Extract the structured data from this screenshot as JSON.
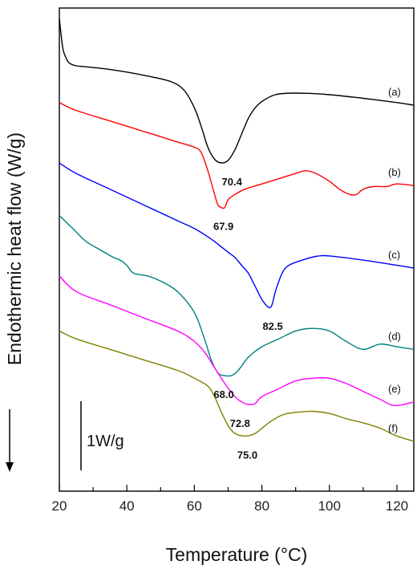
{
  "chart_data": {
    "type": "line",
    "title": "",
    "xlabel": "Temperature (°C)",
    "ylabel": "Endothermic heat flow (W/g)",
    "xlim": [
      20,
      125
    ],
    "xticks": [
      20,
      40,
      60,
      80,
      100,
      120
    ],
    "yticks_shown": false,
    "grid": false,
    "legend": "none",
    "scale_bar_label": "1W/g",
    "series": [
      {
        "id": "a",
        "label": "(a)",
        "color": "#000000",
        "peak_label": "70.4",
        "peak_x": 70.4,
        "points": [
          [
            20,
            -0.4
          ],
          [
            21,
            0.15
          ],
          [
            22,
            0.35
          ],
          [
            23,
            0.45
          ],
          [
            25,
            0.5
          ],
          [
            28,
            0.52
          ],
          [
            35,
            0.57
          ],
          [
            45,
            0.68
          ],
          [
            53,
            0.8
          ],
          [
            57,
            0.97
          ],
          [
            60,
            1.3
          ],
          [
            62,
            1.65
          ],
          [
            64,
            2.05
          ],
          [
            66,
            2.28
          ],
          [
            68,
            2.35
          ],
          [
            70,
            2.3
          ],
          [
            72,
            2.1
          ],
          [
            74,
            1.8
          ],
          [
            76,
            1.5
          ],
          [
            78,
            1.3
          ],
          [
            80,
            1.18
          ],
          [
            84,
            1.05
          ],
          [
            90,
            1.02
          ],
          [
            100,
            1.05
          ],
          [
            110,
            1.12
          ],
          [
            120,
            1.2
          ],
          [
            125,
            1.25
          ]
        ]
      },
      {
        "id": "b",
        "label": "(b)",
        "color": "#ff0000",
        "peak_label": "67.9",
        "peak_x": 67.9,
        "points": [
          [
            20,
            1.2
          ],
          [
            25,
            1.35
          ],
          [
            35,
            1.55
          ],
          [
            45,
            1.75
          ],
          [
            55,
            1.95
          ],
          [
            60,
            2.05
          ],
          [
            62,
            2.15
          ],
          [
            64,
            2.5
          ],
          [
            66,
            2.95
          ],
          [
            67,
            3.15
          ],
          [
            68,
            3.2
          ],
          [
            69,
            3.2
          ],
          [
            70,
            3.05
          ],
          [
            72,
            2.95
          ],
          [
            75,
            2.85
          ],
          [
            80,
            2.75
          ],
          [
            85,
            2.65
          ],
          [
            90,
            2.55
          ],
          [
            93,
            2.5
          ],
          [
            96,
            2.55
          ],
          [
            100,
            2.7
          ],
          [
            103,
            2.85
          ],
          [
            106,
            2.95
          ],
          [
            108,
            2.95
          ],
          [
            110,
            2.85
          ],
          [
            113,
            2.8
          ],
          [
            117,
            2.8
          ],
          [
            120,
            2.75
          ],
          [
            125,
            2.78
          ]
        ]
      },
      {
        "id": "c",
        "label": "(c)",
        "color": "#0000ff",
        "peak_label": "82.5",
        "peak_x": 82.5,
        "points": [
          [
            20,
            2.35
          ],
          [
            25,
            2.55
          ],
          [
            35,
            2.85
          ],
          [
            45,
            3.15
          ],
          [
            55,
            3.45
          ],
          [
            60,
            3.6
          ],
          [
            65,
            3.8
          ],
          [
            68,
            3.95
          ],
          [
            70,
            4.05
          ],
          [
            72,
            4.15
          ],
          [
            74,
            4.3
          ],
          [
            76,
            4.45
          ],
          [
            78,
            4.7
          ],
          [
            80,
            4.95
          ],
          [
            82,
            5.1
          ],
          [
            83,
            5.05
          ],
          [
            84,
            4.8
          ],
          [
            86,
            4.45
          ],
          [
            88,
            4.3
          ],
          [
            92,
            4.2
          ],
          [
            96,
            4.13
          ],
          [
            100,
            4.12
          ],
          [
            110,
            4.2
          ],
          [
            120,
            4.3
          ],
          [
            125,
            4.35
          ]
        ]
      },
      {
        "id": "d",
        "label": "(d)",
        "color": "#008080",
        "peak_label": "68.0",
        "peak_x": 68.0,
        "points": [
          [
            20,
            3.35
          ],
          [
            24,
            3.6
          ],
          [
            28,
            3.85
          ],
          [
            32,
            4.0
          ],
          [
            36,
            4.15
          ],
          [
            38,
            4.2
          ],
          [
            40,
            4.3
          ],
          [
            42,
            4.45
          ],
          [
            46,
            4.5
          ],
          [
            50,
            4.6
          ],
          [
            55,
            4.8
          ],
          [
            60,
            5.2
          ],
          [
            63,
            5.7
          ],
          [
            65,
            6.1
          ],
          [
            67,
            6.35
          ],
          [
            69,
            6.4
          ],
          [
            71,
            6.4
          ],
          [
            73,
            6.3
          ],
          [
            76,
            6.05
          ],
          [
            80,
            5.85
          ],
          [
            85,
            5.7
          ],
          [
            90,
            5.55
          ],
          [
            95,
            5.5
          ],
          [
            100,
            5.55
          ],
          [
            105,
            5.75
          ],
          [
            110,
            5.9
          ],
          [
            115,
            5.8
          ],
          [
            120,
            5.85
          ],
          [
            125,
            5.9
          ]
        ]
      },
      {
        "id": "e",
        "label": "(e)",
        "color": "#ff00ff",
        "peak_label": "72.8",
        "peak_x": 72.8,
        "points": [
          [
            20,
            4.5
          ],
          [
            25,
            4.8
          ],
          [
            35,
            5.05
          ],
          [
            45,
            5.3
          ],
          [
            55,
            5.55
          ],
          [
            60,
            5.75
          ],
          [
            63,
            5.95
          ],
          [
            66,
            6.25
          ],
          [
            69,
            6.55
          ],
          [
            72,
            6.8
          ],
          [
            74,
            6.9
          ],
          [
            76,
            6.95
          ],
          [
            78,
            6.93
          ],
          [
            80,
            6.8
          ],
          [
            85,
            6.65
          ],
          [
            90,
            6.5
          ],
          [
            95,
            6.45
          ],
          [
            100,
            6.45
          ],
          [
            105,
            6.55
          ],
          [
            110,
            6.7
          ],
          [
            115,
            6.85
          ],
          [
            118,
            6.95
          ],
          [
            120,
            6.97
          ],
          [
            122,
            6.95
          ],
          [
            125,
            6.9
          ]
        ]
      },
      {
        "id": "f",
        "label": "(f)",
        "color": "#808000",
        "peak_label": "75.0",
        "peak_x": 75.0,
        "points": [
          [
            20,
            5.55
          ],
          [
            25,
            5.7
          ],
          [
            35,
            5.9
          ],
          [
            45,
            6.1
          ],
          [
            55,
            6.3
          ],
          [
            60,
            6.45
          ],
          [
            64,
            6.6
          ],
          [
            66,
            6.8
          ],
          [
            68,
            7.1
          ],
          [
            70,
            7.35
          ],
          [
            72,
            7.5
          ],
          [
            75,
            7.55
          ],
          [
            78,
            7.5
          ],
          [
            82,
            7.3
          ],
          [
            86,
            7.15
          ],
          [
            90,
            7.1
          ],
          [
            95,
            7.08
          ],
          [
            100,
            7.12
          ],
          [
            105,
            7.22
          ],
          [
            110,
            7.3
          ],
          [
            115,
            7.4
          ],
          [
            120,
            7.55
          ],
          [
            125,
            7.65
          ]
        ]
      }
    ]
  }
}
